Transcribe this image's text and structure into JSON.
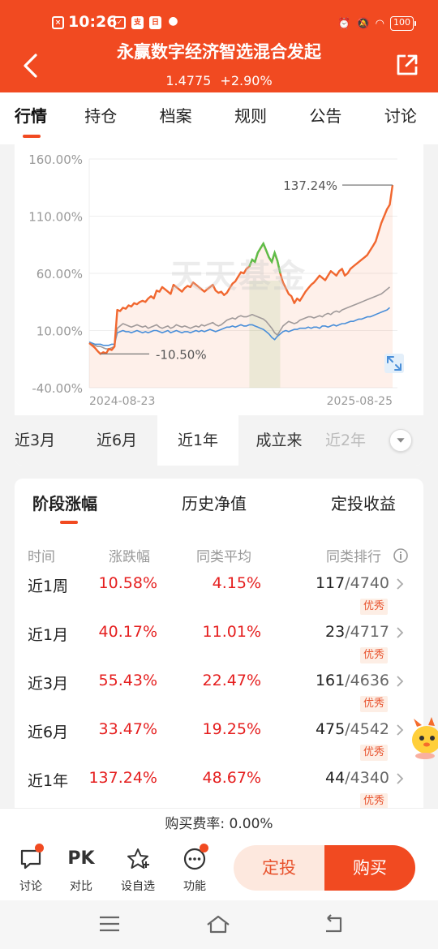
{
  "status_bar": {
    "time": "10:26",
    "battery": "100"
  },
  "header": {
    "title": "永赢数字经济智选混合发起",
    "nav_value": "1.4775",
    "day_change": "+2.90%"
  },
  "top_tabs": [
    {
      "label": "行情",
      "active": true
    },
    {
      "label": "持仓",
      "active": false
    },
    {
      "label": "档案",
      "active": false
    },
    {
      "label": "规则",
      "active": false
    },
    {
      "label": "公告",
      "active": false
    },
    {
      "label": "讨论",
      "active": false
    }
  ],
  "chart": {
    "watermark": "天天基金",
    "expand_icon": "expand-icon"
  },
  "chart_data": {
    "type": "line",
    "y_ticks": [
      "160.00%",
      "110.00%",
      "60.00%",
      "10.00%",
      "-40.00%"
    ],
    "ylim": [
      -40,
      160
    ],
    "x_start_label": "2024-08-23",
    "x_end_label": "2025-08-25",
    "max_label": "137.24%",
    "min_label": "-10.50%",
    "grid": true,
    "series": [
      {
        "color": "#f1672f",
        "values": [
          -1,
          -3,
          -5,
          -8,
          -10.5,
          -9,
          -10,
          -6,
          -7,
          -4,
          28,
          27,
          30,
          29,
          32,
          31,
          34,
          33,
          35,
          36,
          35,
          38,
          40,
          38,
          45,
          44,
          48,
          46,
          44,
          42,
          50,
          48,
          46,
          44,
          47,
          49,
          48,
          52,
          50,
          48,
          46,
          44,
          46,
          48,
          50,
          45,
          43,
          44,
          41,
          43,
          47,
          51,
          53,
          57,
          61,
          60,
          64,
          66,
          72,
          70,
          78,
          82,
          86,
          80,
          74,
          70,
          78,
          71,
          60,
          52,
          47,
          42,
          40,
          34,
          38,
          36,
          40,
          44,
          47,
          50,
          52,
          55,
          58,
          56,
          54,
          58,
          62,
          60,
          58,
          62,
          64,
          58,
          60,
          64,
          66,
          68,
          70,
          72,
          74,
          76,
          80,
          84,
          88,
          96,
          104,
          110,
          116,
          120,
          137.24
        ]
      },
      {
        "color": "#a09a9a",
        "values": [
          -1,
          -2,
          -3,
          -4,
          -4,
          -5,
          -6,
          -6,
          -5,
          -4,
          12,
          14,
          16,
          15,
          14,
          13,
          14,
          15,
          14,
          13,
          14,
          12,
          13,
          14,
          15,
          13,
          12,
          13,
          14,
          12,
          13,
          15,
          14,
          13,
          14,
          13,
          12,
          13,
          14,
          13,
          15,
          14,
          15,
          16,
          17,
          15,
          14,
          15,
          17,
          19,
          20,
          21,
          20,
          22,
          23,
          22,
          22,
          23,
          24,
          23,
          22,
          21,
          20,
          18,
          15,
          12,
          8,
          6,
          10,
          14,
          16,
          18,
          17,
          16,
          17,
          19,
          20,
          21,
          22,
          22,
          21,
          22,
          23,
          22,
          24,
          25,
          24,
          26,
          27,
          26,
          28,
          29,
          30,
          31,
          32,
          33,
          34,
          35,
          36,
          37,
          38,
          39,
          40,
          41,
          42,
          44,
          46,
          48
        ]
      },
      {
        "color": "#4a8fd9",
        "values": [
          0,
          -1,
          -2,
          -2,
          -2,
          -3,
          -3,
          -3,
          -2,
          -2,
          8,
          9,
          10,
          9,
          9,
          8,
          9,
          10,
          9,
          8,
          9,
          8,
          9,
          10,
          10,
          9,
          8,
          9,
          10,
          8,
          9,
          10,
          9,
          8,
          9,
          9,
          8,
          9,
          10,
          9,
          10,
          9,
          10,
          11,
          10,
          9,
          10,
          11,
          12,
          13,
          13,
          14,
          13,
          14,
          15,
          14,
          14,
          15,
          15,
          14,
          13,
          12,
          11,
          9,
          7,
          4,
          2,
          5,
          7,
          9,
          10,
          9,
          10,
          11,
          11,
          12,
          12,
          12,
          13,
          12,
          13,
          13,
          12,
          14,
          14,
          13,
          14,
          15,
          14,
          15,
          16,
          16,
          17,
          18,
          18,
          19,
          20,
          20,
          21,
          22,
          22,
          23,
          24,
          25,
          26,
          27,
          28,
          30
        ]
      }
    ],
    "highlight_range": [
      57,
      68
    ]
  },
  "ranges": [
    {
      "label": "近3月"
    },
    {
      "label": "近6月"
    },
    {
      "label": "近1年",
      "active": true
    },
    {
      "label": "成立来"
    },
    {
      "label": "近2年"
    }
  ],
  "perf": {
    "tabs": [
      "阶段涨幅",
      "历史净值",
      "定投收益"
    ],
    "headers": {
      "period": "时间",
      "change": "涨跌幅",
      "avg": "同类平均",
      "rank": "同类排行"
    },
    "rows": [
      {
        "period": "近1周",
        "change": "10.58%",
        "avg": "4.15%",
        "rank": "117",
        "total": "/4740",
        "badge": "优秀"
      },
      {
        "period": "近1月",
        "change": "40.17%",
        "avg": "11.01%",
        "rank": "23",
        "total": "/4717",
        "badge": "优秀"
      },
      {
        "period": "近3月",
        "change": "55.43%",
        "avg": "22.47%",
        "rank": "161",
        "total": "/4636",
        "badge": "优秀"
      },
      {
        "period": "近6月",
        "change": "33.47%",
        "avg": "19.25%",
        "rank": "475",
        "total": "/4542",
        "badge": "优秀"
      },
      {
        "period": "近1年",
        "change": "137.24%",
        "avg": "48.67%",
        "rank": "44",
        "total": "/4340",
        "badge": "优秀"
      }
    ]
  },
  "fee_text": "购买费率: 0.00%",
  "bottom_bar": {
    "items": [
      {
        "label": "讨论",
        "icon": "chat-icon"
      },
      {
        "label": "对比",
        "icon_text": "PK"
      },
      {
        "label": "设自选",
        "icon": "star-add-icon"
      },
      {
        "label": "功能",
        "icon": "more-icon"
      }
    ],
    "sip_label": "定投",
    "buy_label": "购买"
  },
  "colors": {
    "brand": "#f14a21",
    "up": "#e51e1e",
    "fund_line": "#f1672f",
    "avg_line": "#a09a9a",
    "index_line": "#4a8fd9",
    "highlight_line": "#5cbf4a"
  }
}
